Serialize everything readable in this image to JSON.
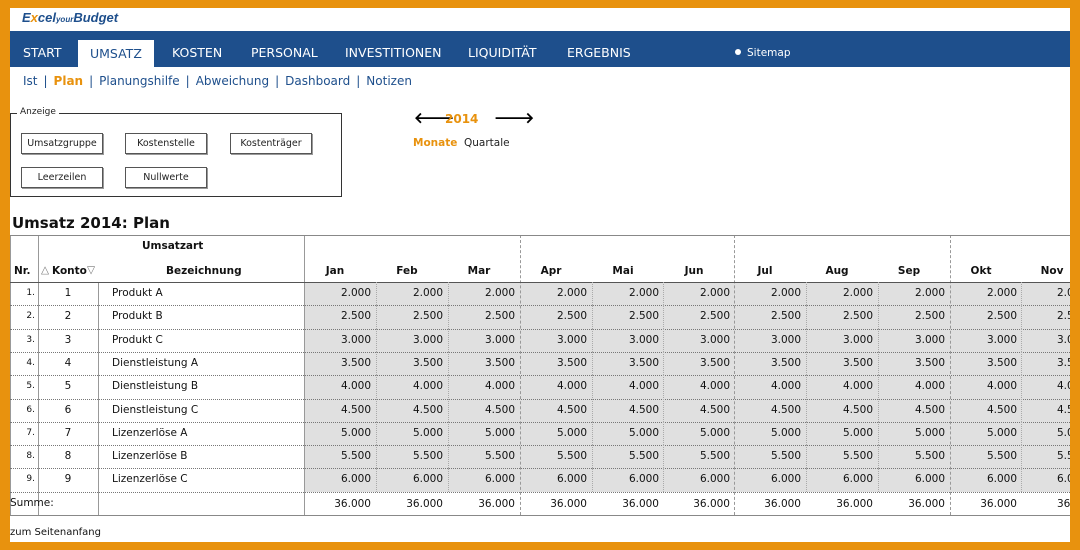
{
  "logo": {
    "part1": "E",
    "part2": "x",
    "part3": "cel",
    "part4": "your",
    "part5": "Budget"
  },
  "nav": {
    "items": [
      "START",
      "UMSATZ",
      "KOSTEN",
      "PERSONAL",
      "INVESTITIONEN",
      "LIQUIDITÄT",
      "ERGEBNIS"
    ],
    "active": "UMSATZ",
    "sitemap": "Sitemap"
  },
  "subnav": {
    "items": [
      "Ist",
      "Plan",
      "Planungshilfe",
      "Abweichung",
      "Dashboard",
      "Notizen"
    ],
    "active": "Plan",
    "separator": "|"
  },
  "anzeige": {
    "legend": "Anzeige",
    "buttons": [
      "Umsatzgruppe",
      "Kostenstelle",
      "Kostenträger",
      "Leerzeilen",
      "Nullwerte"
    ]
  },
  "year_control": {
    "prev_icon": "arrow-left-icon",
    "next_icon": "arrow-right-icon",
    "year": "2014",
    "left_arrow": "🡐",
    "right_arrow": "🡒"
  },
  "period": {
    "active": "Monate",
    "inactive": "Quartale"
  },
  "title": "Umsatz 2014: Plan",
  "table": {
    "group_header": "Umsatzart",
    "col_nr": "Nr.",
    "col_konto": "Konto",
    "col_bez": "Bezeichnung",
    "sort_up": "△",
    "sort_down": "▽",
    "months": [
      "Jan",
      "Feb",
      "Mar",
      "Apr",
      "Mai",
      "Jun",
      "Jul",
      "Aug",
      "Sep",
      "Okt",
      "Nov"
    ],
    "rows": [
      {
        "nr": "1.",
        "konto": "1",
        "bez": "Produkt A",
        "value": "2.000",
        "last": "2.0"
      },
      {
        "nr": "2.",
        "konto": "2",
        "bez": "Produkt B",
        "value": "2.500",
        "last": "2.5"
      },
      {
        "nr": "3.",
        "konto": "3",
        "bez": "Produkt C",
        "value": "3.000",
        "last": "3.0"
      },
      {
        "nr": "4.",
        "konto": "4",
        "bez": "Dienstleistung A",
        "value": "3.500",
        "last": "3.5"
      },
      {
        "nr": "5.",
        "konto": "5",
        "bez": "Dienstleistung B",
        "value": "4.000",
        "last": "4.0"
      },
      {
        "nr": "6.",
        "konto": "6",
        "bez": "Dienstleistung C",
        "value": "4.500",
        "last": "4.5"
      },
      {
        "nr": "7.",
        "konto": "7",
        "bez": "Lizenzerlöse A",
        "value": "5.000",
        "last": "5.0"
      },
      {
        "nr": "8.",
        "konto": "8",
        "bez": "Lizenzerlöse B",
        "value": "5.500",
        "last": "5.5"
      },
      {
        "nr": "9.",
        "konto": "9",
        "bez": "Lizenzerlöse C",
        "value": "6.000",
        "last": "6.0"
      }
    ],
    "sum_label": "Summe:",
    "sum_value": "36.000",
    "sum_last": "36.0"
  },
  "footer": {
    "top_link": "zum Seitenanfang"
  }
}
